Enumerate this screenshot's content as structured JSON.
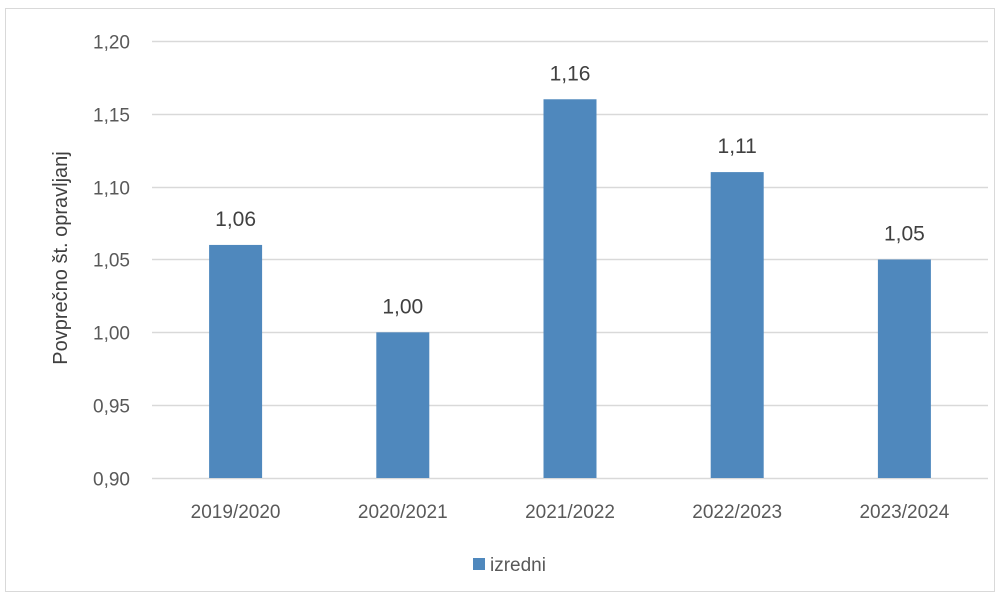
{
  "chart_data": {
    "type": "bar",
    "title": "",
    "xlabel": "",
    "ylabel": "Povprečno št. opravljanj",
    "categories": [
      "2019/2020",
      "2020/2021",
      "2021/2022",
      "2022/2023",
      "2023/2024"
    ],
    "series": [
      {
        "name": "izredni",
        "values": [
          1.06,
          1.0,
          1.16,
          1.11,
          1.05
        ],
        "labels": [
          "1,06",
          "1,00",
          "1,16",
          "1,11",
          "1,05"
        ],
        "color": "#4f88bd"
      }
    ],
    "ylim": [
      0.9,
      1.2
    ],
    "yticks": [
      0.9,
      0.95,
      1.0,
      1.05,
      1.1,
      1.15,
      1.2
    ],
    "ytick_labels": [
      "0,90",
      "0,95",
      "1,00",
      "1,05",
      "1,10",
      "1,15",
      "1,20"
    ],
    "grid": true,
    "gridline_color": "#d9d9d9",
    "legend_position": "bottom"
  }
}
